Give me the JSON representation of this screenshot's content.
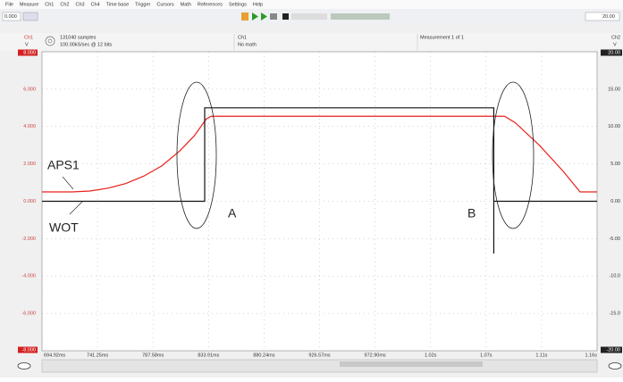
{
  "menu": [
    "File",
    "Measure",
    "Ch1",
    "Ch2",
    "Ch3",
    "Ch4",
    "Time base",
    "Trigger",
    "Cursors",
    "Math",
    "References",
    "Settings",
    "Help"
  ],
  "toolbar": {
    "left_value": "0.000",
    "right_value": "20.00"
  },
  "info": {
    "ch1": "Ch1",
    "ch1_unit": "V",
    "samples": "131040 samples",
    "rate": "100.00kS/sec @ 12 bits",
    "channel": "Ch1",
    "math": "No math",
    "measurement": "Measurement 1 of 1",
    "ch2": "Ch2",
    "ch2_unit": "V"
  },
  "chart_data": {
    "type": "line",
    "xlim": [
      694.92,
      1158.22
    ],
    "xticks": [
      {
        "value": 694.92,
        "label": "694.92ms"
      },
      {
        "value": 741.25,
        "label": "741.25ms"
      },
      {
        "value": 787.58,
        "label": "787.58ms"
      },
      {
        "value": 833.91,
        "label": "833.91ms"
      },
      {
        "value": 880.24,
        "label": "880.24ms"
      },
      {
        "value": 926.57,
        "label": "926.57ms"
      },
      {
        "value": 972.9,
        "label": "972.90ms"
      },
      {
        "value": 1019.23,
        "label": "1.02s"
      },
      {
        "value": 1065.56,
        "label": "1.07s"
      },
      {
        "value": 1111.89,
        "label": "1.11s"
      },
      {
        "value": 1158.22,
        "label": "1.16s"
      }
    ],
    "ylim": [
      -8,
      8
    ],
    "yticks": [
      {
        "value": 8,
        "label": "8.000"
      },
      {
        "value": 6,
        "label": "6.000"
      },
      {
        "value": 4,
        "label": "4.000"
      },
      {
        "value": 2,
        "label": "2.000"
      },
      {
        "value": 0,
        "label": "0.000"
      },
      {
        "value": -2,
        "label": "-2.000"
      },
      {
        "value": -4,
        "label": "-4.000"
      },
      {
        "value": -6,
        "label": "-6.000"
      },
      {
        "value": -8,
        "label": "-8.000"
      }
    ],
    "y2lim": [
      -20,
      20
    ],
    "y2ticks": [
      {
        "value": 20,
        "label": "20.00"
      },
      {
        "value": 15,
        "label": "15.00"
      },
      {
        "value": 10,
        "label": "10.00"
      },
      {
        "value": 5,
        "label": "5.00"
      },
      {
        "value": 0,
        "label": "0.00"
      },
      {
        "value": -5,
        "label": "-5.00"
      },
      {
        "value": -10,
        "label": "-10.0"
      },
      {
        "value": -15,
        "label": "-15.0"
      },
      {
        "value": -20,
        "label": "-20.00"
      }
    ],
    "grid": true,
    "series": [
      {
        "name": "APS1",
        "color": "#e8201c",
        "x": [
          694.92,
          720,
          735,
          750,
          765,
          780,
          795,
          810,
          822,
          832,
          836,
          1081,
          1090,
          1110,
          1130,
          1144,
          1158.22
        ],
        "values": [
          0.5,
          0.5,
          0.55,
          0.7,
          0.95,
          1.35,
          1.9,
          2.7,
          3.5,
          4.4,
          4.55,
          4.55,
          4.2,
          3.0,
          1.6,
          0.5,
          0.5
        ]
      },
      {
        "name": "WOT",
        "color": "#111111",
        "axis": "y2",
        "x": [
          694.92,
          830.7,
          830.7,
          1072,
          1072,
          1072,
          1158.22
        ],
        "values": [
          0,
          0,
          12.5,
          12.5,
          -7,
          0,
          0
        ]
      }
    ],
    "annotations": [
      "A",
      "B"
    ]
  }
}
